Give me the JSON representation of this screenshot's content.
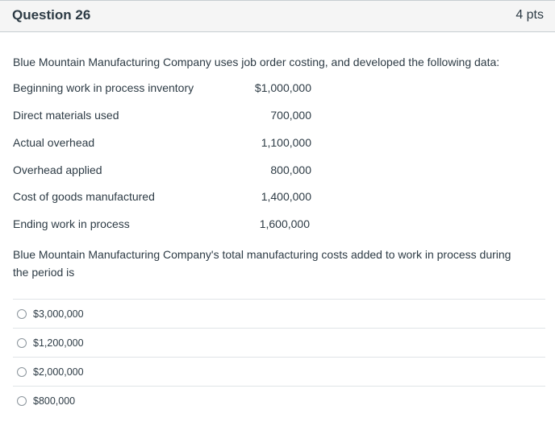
{
  "question": {
    "title": "Question 26",
    "points": "4 pts",
    "intro": "Blue Mountain Manufacturing Company uses job order costing, and developed the following data:",
    "data_rows": [
      {
        "label": "Beginning work in process inventory",
        "value": "$1,000,000"
      },
      {
        "label": "Direct materials used",
        "value": "700,000"
      },
      {
        "label": "Actual overhead",
        "value": "1,100,000"
      },
      {
        "label": "Overhead applied",
        "value": "800,000"
      },
      {
        "label": "Cost of goods manufactured",
        "value": "1,400,000"
      },
      {
        "label": "Ending work in process",
        "value": "1,600,000"
      }
    ],
    "prompt": "Blue Mountain Manufacturing Company's total manufacturing costs added to work in process during  the period is",
    "answers": [
      {
        "label": "$3,000,000"
      },
      {
        "label": "$1,200,000"
      },
      {
        "label": "$2,000,000"
      },
      {
        "label": "$800,000"
      }
    ]
  }
}
